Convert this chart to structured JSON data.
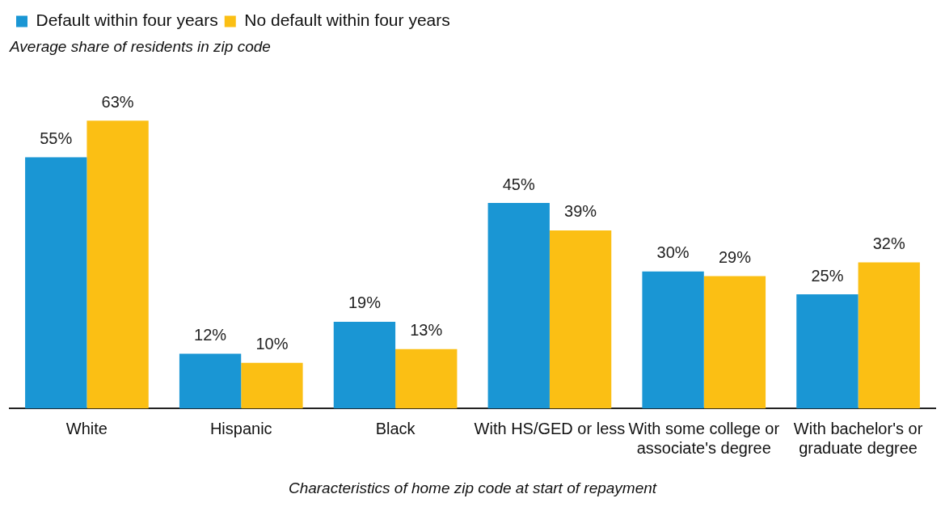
{
  "chart_data": {
    "type": "bar",
    "ylabel": "Average share of residents in zip code",
    "xlabel": "Characteristics of home zip code at start of repayment",
    "categories": [
      "White",
      "Hispanic",
      "Black",
      "With HS/GED or less",
      "With some college or associate's degree",
      "With bachelor's or graduate degree"
    ],
    "series": [
      {
        "name": "Default within four years",
        "color": "#1a96d4",
        "values": [
          55,
          12,
          19,
          45,
          30,
          25
        ],
        "value_labels": [
          "55%",
          "12%",
          "19%",
          "45%",
          "30%",
          "25%"
        ]
      },
      {
        "name": "No default within four years",
        "color": "#fbbf14",
        "values": [
          63,
          10,
          13,
          39,
          29,
          32
        ],
        "value_labels": [
          "63%",
          "10%",
          "13%",
          "39%",
          "29%",
          "32%"
        ]
      }
    ],
    "legend": "top left",
    "tick_labels": "x",
    "grid": false
  }
}
